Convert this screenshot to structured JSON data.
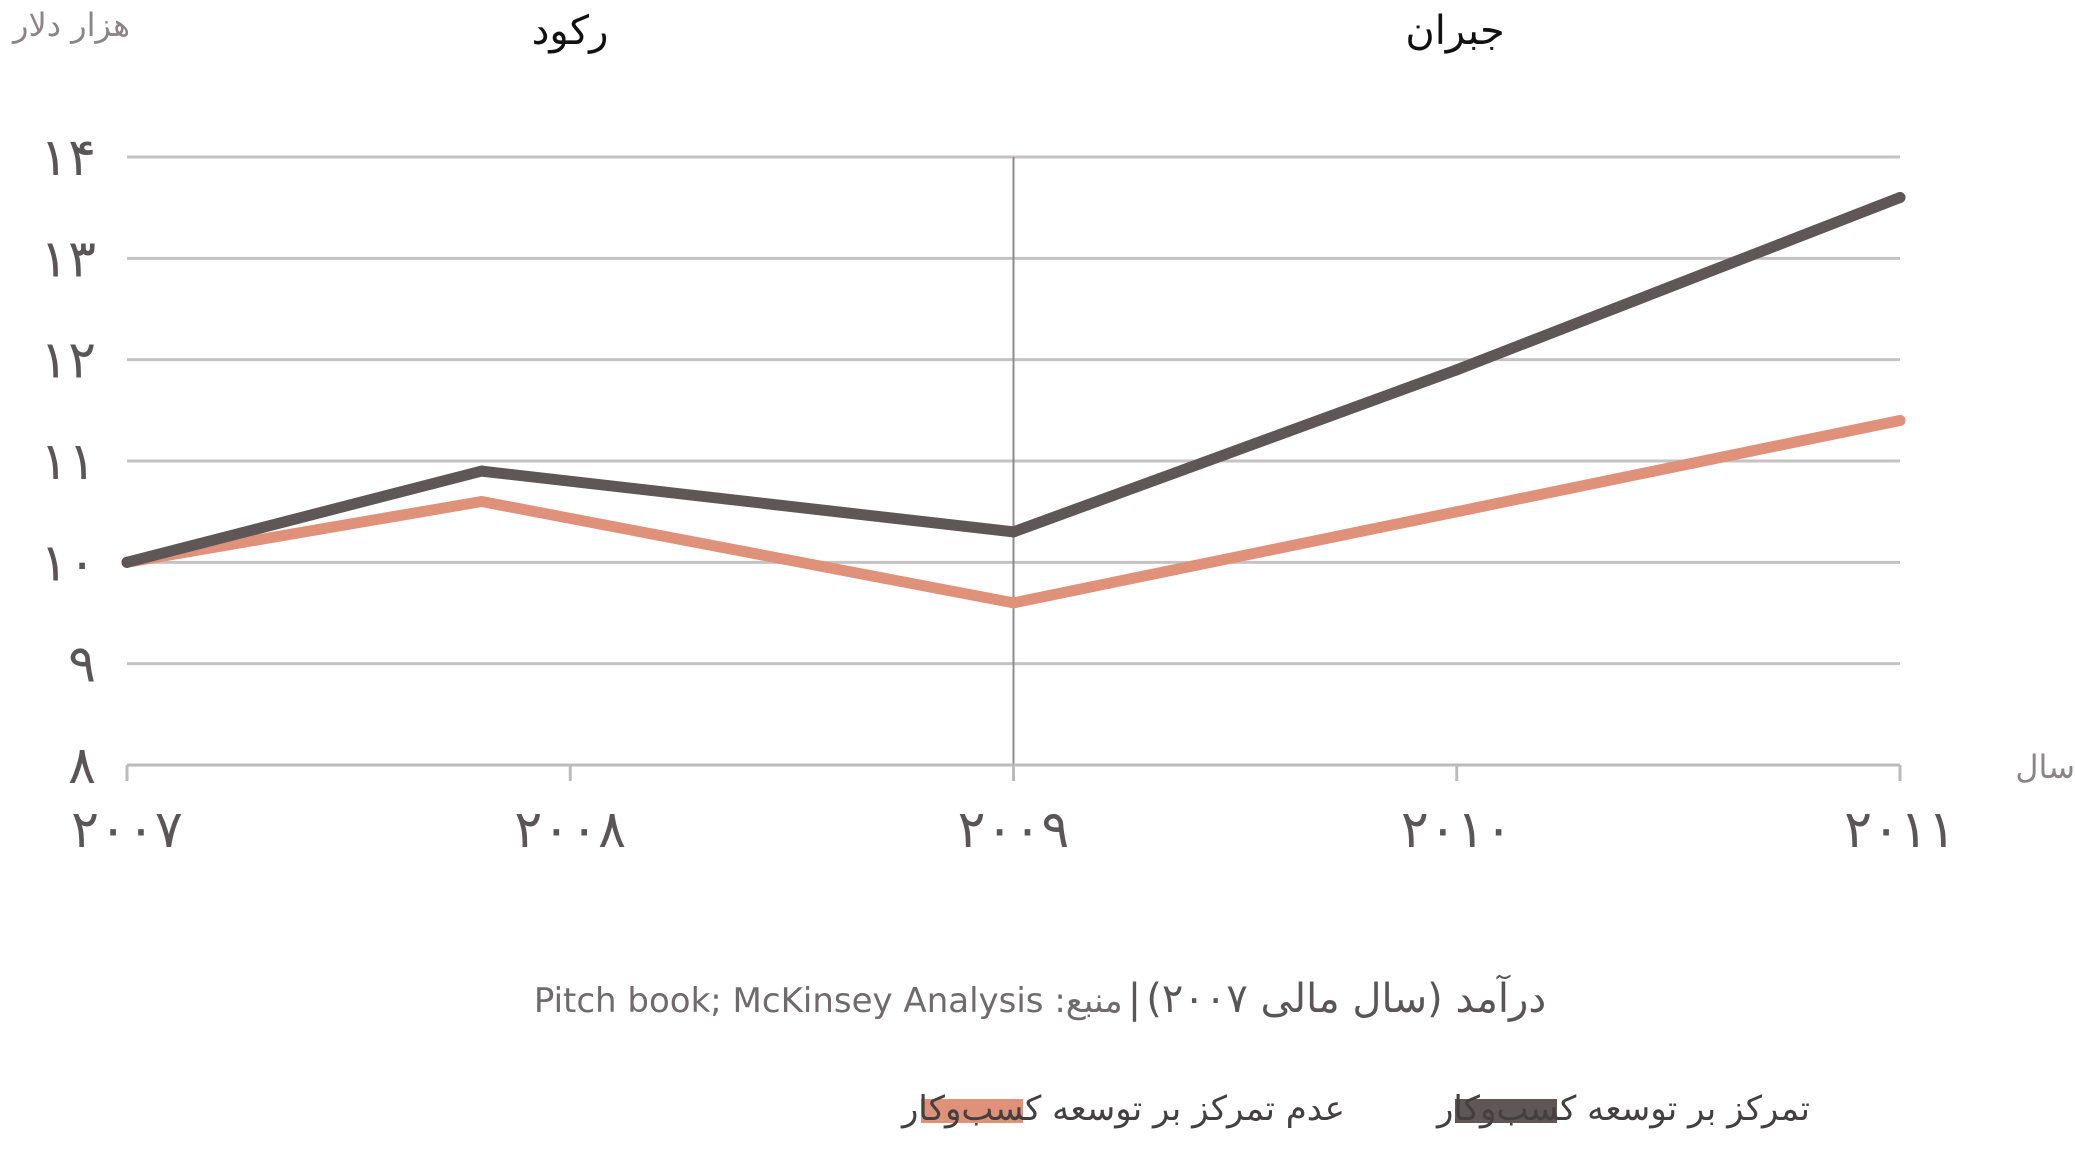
{
  "chart_data": {
    "type": "line",
    "ylabel": "هزار دلار",
    "xlabel": "سال",
    "x": [
      2007,
      2008,
      2009,
      2010,
      2011
    ],
    "x_tick_labels": [
      "۲۰۰۷",
      "۲۰۰۸",
      "۲۰۰۹",
      "۲۰۱۰",
      "۲۰۱۱"
    ],
    "ylim": [
      8,
      14
    ],
    "y_ticks": [
      8,
      9,
      10,
      11,
      12,
      13,
      14
    ],
    "y_tick_labels": [
      "۸",
      "۹",
      "۱۰",
      "۱۱",
      "۱۲",
      "۱۳",
      "۱۴"
    ],
    "grid": true,
    "divider_x": 2009,
    "phases": [
      {
        "label": "رکود",
        "x": 2008
      },
      {
        "label": "جبران",
        "x": 2010
      }
    ],
    "series": [
      {
        "name": "تمرکز بر توسعه کسب‌وکار",
        "color": "#5e5657",
        "points": [
          [
            2007,
            10.0
          ],
          [
            2007.8,
            10.9
          ],
          [
            2009,
            10.3
          ],
          [
            2010,
            11.9
          ],
          [
            2011,
            13.6
          ]
        ]
      },
      {
        "name": "عدم تمرکز بر توسعه کسب‌وکار",
        "color": "#e0917a",
        "points": [
          [
            2007,
            10.0
          ],
          [
            2007.8,
            10.6
          ],
          [
            2009,
            9.6
          ],
          [
            2010,
            10.5
          ],
          [
            2011,
            11.4
          ]
        ]
      }
    ],
    "legend_position": "bottom-center",
    "caption_title": "درآمد (سال مالی ۲۰۰۷)",
    "caption_separator": "|",
    "caption_source": "منبع: Pitch book; McKinsey Analysis"
  }
}
